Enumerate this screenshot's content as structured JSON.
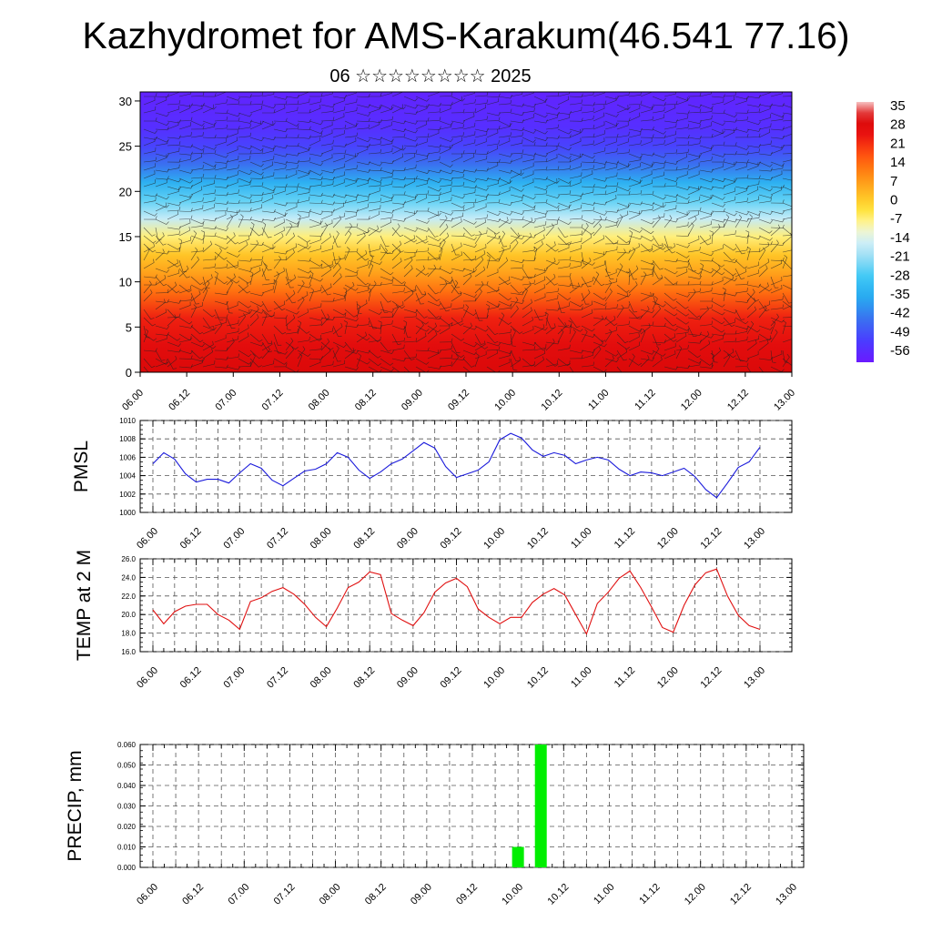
{
  "page": {
    "title": "Kazhydromet for AMS-Karakum(46.541 77.16)",
    "subtitle": "06 ☆☆☆☆☆☆☆☆ 2025"
  },
  "colors": {
    "pmsl_line": "#1a1adb",
    "temp_line": "#e01010",
    "precip_bar": "#00ee00",
    "grid": "#555555",
    "wind_barbs": "#222222"
  },
  "chart_data": [
    {
      "id": "vertical-section",
      "type": "heatmap",
      "title": "",
      "x_tick_labels": [
        "06.00",
        "06.12",
        "07.00",
        "07.12",
        "08.00",
        "08.12",
        "09.00",
        "09.12",
        "10.00",
        "10.12",
        "11.00",
        "11.12",
        "12.00",
        "12.12",
        "13.00"
      ],
      "y_ticks": [
        0,
        5,
        10,
        15,
        20,
        25,
        30
      ],
      "ylim": [
        0,
        31
      ],
      "layers": [
        "temperature shading",
        "wind barbs"
      ],
      "temperature_profile": [
        {
          "y": 0,
          "value": 31
        },
        {
          "y": 3,
          "value": 28
        },
        {
          "y": 6,
          "value": 24
        },
        {
          "y": 9,
          "value": 14
        },
        {
          "y": 11,
          "value": 7
        },
        {
          "y": 13,
          "value": 2
        },
        {
          "y": 15,
          "value": -6
        },
        {
          "y": 17,
          "value": -16
        },
        {
          "y": 19,
          "value": -25
        },
        {
          "y": 21,
          "value": -34
        },
        {
          "y": 23,
          "value": -44
        },
        {
          "y": 25,
          "value": -51
        },
        {
          "y": 27,
          "value": -55
        },
        {
          "y": 31,
          "value": -58
        }
      ],
      "colorbar": {
        "labels": [
          "35",
          "28",
          "21",
          "14",
          "7",
          "0",
          "-7",
          "-14",
          "-21",
          "-28",
          "-35",
          "-42",
          "-49",
          "-56"
        ],
        "range": [
          -60,
          38
        ]
      }
    },
    {
      "id": "pmsl",
      "type": "line",
      "ylabel": "PMSL",
      "ylim": [
        1000,
        1010
      ],
      "y_ticks": [
        1000,
        1002,
        1004,
        1006,
        1008,
        1010
      ],
      "x_tick_labels": [
        "06.00",
        "06.12",
        "07.00",
        "07.12",
        "08.00",
        "08.12",
        "09.00",
        "09.12",
        "10.00",
        "10.12",
        "11.00",
        "11.12",
        "12.00",
        "12.12",
        "13.00"
      ],
      "step_hours": 3,
      "values": [
        1005.3,
        1006.5,
        1005.8,
        1004.2,
        1003.3,
        1003.6,
        1003.6,
        1003.2,
        1004.3,
        1005.3,
        1004.8,
        1003.5,
        1002.9,
        1003.7,
        1004.5,
        1004.7,
        1005.3,
        1006.5,
        1006.0,
        1004.6,
        1003.7,
        1004.4,
        1005.3,
        1005.8,
        1006.7,
        1007.6,
        1007.0,
        1005.0,
        1003.8,
        1004.2,
        1004.6,
        1005.5,
        1007.9,
        1008.6,
        1008.1,
        1006.8,
        1006.1,
        1006.5,
        1006.2,
        1005.3,
        1005.7,
        1006.0,
        1005.7,
        1004.7,
        1004.0,
        1004.4,
        1004.3,
        1004.0,
        1004.4,
        1004.8,
        1003.9,
        1002.5,
        1001.6,
        1003.2,
        1004.9,
        1005.5,
        1007.1
      ]
    },
    {
      "id": "temp2m",
      "type": "line",
      "ylabel": "TEMP at 2 M",
      "ylim": [
        16,
        26
      ],
      "y_ticks": [
        "16.0",
        "18.0",
        "20.0",
        "22.0",
        "24.0",
        "26.0"
      ],
      "x_tick_labels": [
        "06.00",
        "06.12",
        "07.00",
        "07.12",
        "08.00",
        "08.12",
        "09.00",
        "09.12",
        "10.00",
        "10.12",
        "11.00",
        "11.12",
        "12.00",
        "12.12",
        "13.00"
      ],
      "step_hours": 3,
      "values": [
        20.5,
        19.0,
        20.3,
        20.9,
        21.1,
        21.1,
        20.0,
        19.4,
        18.4,
        21.4,
        21.8,
        22.5,
        22.9,
        22.2,
        21.1,
        19.7,
        18.7,
        20.7,
        22.9,
        23.5,
        24.6,
        24.3,
        20.1,
        19.4,
        18.8,
        20.2,
        22.4,
        23.4,
        23.9,
        23.0,
        20.6,
        19.7,
        19.0,
        19.7,
        19.7,
        21.3,
        22.2,
        22.8,
        22.1,
        20.0,
        17.9,
        21.2,
        22.4,
        23.9,
        24.7,
        22.9,
        20.8,
        18.6,
        18.1,
        21.0,
        23.2,
        24.5,
        24.9,
        22.0,
        19.9,
        18.8,
        18.4
      ]
    },
    {
      "id": "precip",
      "type": "bar",
      "ylabel": "PRECIP, mm",
      "ylim": [
        0,
        0.06
      ],
      "y_ticks": [
        "0.000",
        "0.010",
        "0.020",
        "0.030",
        "0.040",
        "0.050",
        "0.060"
      ],
      "x_tick_labels": [
        "06.00",
        "06.12",
        "07.00",
        "07.12",
        "08.00",
        "08.12",
        "09.00",
        "09.12",
        "10.00",
        "10.12",
        "11.00",
        "11.12",
        "12.00",
        "12.12",
        "13.00"
      ],
      "step_hours": 3,
      "bars": [
        {
          "x": "10.00",
          "value": 0.01
        },
        {
          "x": "10.06",
          "value": 0.06
        }
      ]
    }
  ]
}
